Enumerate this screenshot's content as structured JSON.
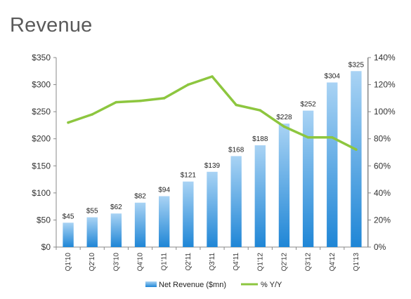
{
  "page": {
    "title": "Revenue"
  },
  "chart_data": {
    "type": "bar",
    "categories": [
      "Q1'10",
      "Q2'10",
      "Q3'10",
      "Q4'10",
      "Q1'11",
      "Q2'11",
      "Q3'11",
      "Q4'11",
      "Q1'12",
      "Q2'12",
      "Q3'12",
      "Q4'12",
      "Q1'13"
    ],
    "series": [
      {
        "name": "Net Revenue ($mn)",
        "type": "bar",
        "axis": "left",
        "values": [
          45,
          55,
          62,
          82,
          94,
          121,
          139,
          168,
          188,
          228,
          252,
          304,
          325
        ],
        "labels": [
          "$45",
          "$55",
          "$62",
          "$82",
          "$94",
          "$121",
          "$139",
          "$168",
          "$188",
          "$228",
          "$252",
          "$304",
          "$325"
        ],
        "color": "#2a8fd8"
      },
      {
        "name": "% Y/Y",
        "type": "line",
        "axis": "right",
        "values": [
          92,
          98,
          107,
          108,
          110,
          120,
          126,
          105,
          101,
          89,
          81,
          81,
          72
        ],
        "color": "#8dc63f"
      }
    ],
    "y_left": {
      "min": 0,
      "max": 350,
      "ticks": [
        0,
        50,
        100,
        150,
        200,
        250,
        300,
        350
      ],
      "tick_labels": [
        "$0",
        "$50",
        "$100",
        "$150",
        "$200",
        "$250",
        "$300",
        "$350"
      ]
    },
    "y_right": {
      "min": 0,
      "max": 140,
      "ticks": [
        0,
        20,
        40,
        60,
        80,
        100,
        120,
        140
      ],
      "tick_labels": [
        "0%",
        "20%",
        "40%",
        "60%",
        "80%",
        "100%",
        "120%",
        "140%"
      ]
    },
    "grid": false,
    "legend_position": "bottom"
  }
}
